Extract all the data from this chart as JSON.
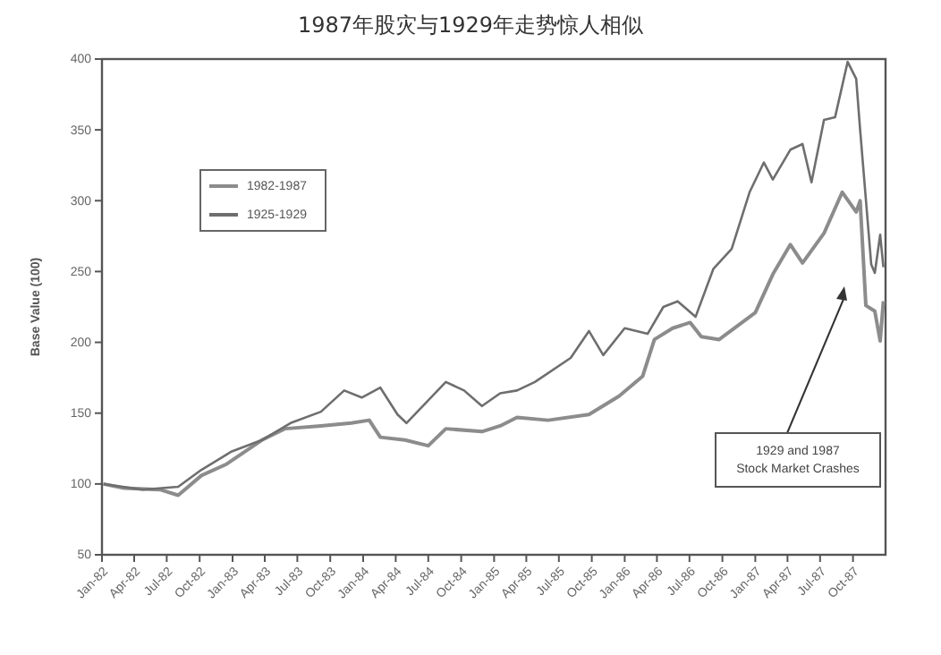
{
  "chart_data": {
    "type": "line",
    "title": "1987年股灾与1929年走势惊人相似",
    "ylabel": "Base Value (100)",
    "xlim": [
      "1982-01-01",
      "1987-12-31"
    ],
    "ylim": [
      50,
      400
    ],
    "yticks": [
      50,
      100,
      150,
      200,
      250,
      300,
      350,
      400
    ],
    "xticks": [
      {
        "value": "1982-01-01",
        "label": "Jan-82"
      },
      {
        "value": "1982-04-01",
        "label": "Apr-82"
      },
      {
        "value": "1982-07-01",
        "label": "Jul-82"
      },
      {
        "value": "1982-10-01",
        "label": "Oct-82"
      },
      {
        "value": "1983-01-01",
        "label": "Jan-83"
      },
      {
        "value": "1983-04-01",
        "label": "Apr-83"
      },
      {
        "value": "1983-07-01",
        "label": "Jul-83"
      },
      {
        "value": "1983-10-01",
        "label": "Oct-83"
      },
      {
        "value": "1984-01-01",
        "label": "Jan-84"
      },
      {
        "value": "1984-04-01",
        "label": "Apr-84"
      },
      {
        "value": "1984-07-01",
        "label": "Jul-84"
      },
      {
        "value": "1984-10-01",
        "label": "Oct-84"
      },
      {
        "value": "1985-01-01",
        "label": "Jan-85"
      },
      {
        "value": "1985-04-01",
        "label": "Apr-85"
      },
      {
        "value": "1985-07-01",
        "label": "Jul-85"
      },
      {
        "value": "1985-10-01",
        "label": "Oct-85"
      },
      {
        "value": "1986-01-01",
        "label": "Jan-86"
      },
      {
        "value": "1986-04-01",
        "label": "Apr-86"
      },
      {
        "value": "1986-07-01",
        "label": "Jul-86"
      },
      {
        "value": "1986-10-01",
        "label": "Oct-86"
      },
      {
        "value": "1987-01-01",
        "label": "Jan-87"
      },
      {
        "value": "1987-04-01",
        "label": "Apr-87"
      },
      {
        "value": "1987-07-01",
        "label": "Jul-87"
      },
      {
        "value": "1987-10-01",
        "label": "Oct-87"
      }
    ],
    "grid": false,
    "legend": "top left",
    "line_style": "solid",
    "marker": "none",
    "series": [
      {
        "name": "1982-1987",
        "color": "#8c8c8c",
        "x": [
          "1982-01-05",
          "1982-03-04",
          "1982-06-12",
          "1982-08-02",
          "1982-10-06",
          "1982-12-15",
          "1983-03-24",
          "1983-05-27",
          "1983-09-05",
          "1983-11-29",
          "1984-01-18",
          "1984-02-18",
          "1984-04-27",
          "1984-07-01",
          "1984-08-19",
          "1984-11-28",
          "1985-01-18",
          "1985-03-06",
          "1985-06-01",
          "1985-09-23",
          "1985-12-16",
          "1986-02-20",
          "1986-03-25",
          "1986-05-15",
          "1986-07-03",
          "1986-08-03",
          "1986-09-22",
          "1987-01-01",
          "1987-02-19",
          "1987-04-09",
          "1987-05-13",
          "1987-07-12",
          "1987-09-01",
          "1987-10-10",
          "1987-10-21",
          "1987-11-06",
          "1987-12-01",
          "1987-12-16",
          "1987-12-25"
        ],
        "values": [
          100,
          97,
          96,
          92,
          106,
          114,
          131,
          139,
          141,
          143,
          145,
          133,
          131,
          127,
          139,
          137,
          141,
          147,
          145,
          149,
          162,
          176,
          202,
          210,
          214,
          204,
          202,
          221,
          248,
          269,
          256,
          277,
          306,
          292,
          300,
          226,
          222,
          201,
          229
        ]
      },
      {
        "name": "1925-1929",
        "color": "#6e6e6e",
        "x": [
          "1982-01-05",
          "1982-04-24",
          "1982-08-02",
          "1982-10-06",
          "1982-12-30",
          "1983-03-24",
          "1983-06-12",
          "1983-09-05",
          "1983-11-09",
          "1983-12-28",
          "1984-02-18",
          "1984-04-06",
          "1984-05-01",
          "1984-07-01",
          "1984-08-19",
          "1984-10-09",
          "1984-11-28",
          "1985-01-18",
          "1985-03-06",
          "1985-04-25",
          "1985-08-03",
          "1985-09-23",
          "1985-11-02",
          "1986-01-01",
          "1986-03-06",
          "1986-04-19",
          "1986-05-29",
          "1986-07-18",
          "1986-09-06",
          "1986-10-27",
          "1986-12-16",
          "1987-01-25",
          "1987-02-19",
          "1987-04-09",
          "1987-05-13",
          "1987-06-07",
          "1987-07-12",
          "1987-08-12",
          "1987-09-16",
          "1987-10-10",
          "1987-10-21",
          "1987-11-06",
          "1987-11-21",
          "1987-12-01",
          "1987-12-16",
          "1987-12-25"
        ],
        "values": [
          100,
          96,
          98,
          110,
          123,
          131,
          143,
          151,
          166,
          161,
          168,
          149,
          143,
          159,
          172,
          166,
          155,
          164,
          166,
          172,
          189,
          208,
          191,
          210,
          206,
          225,
          229,
          218,
          252,
          266,
          306,
          327,
          315,
          336,
          340,
          313,
          357,
          359,
          398,
          386,
          350,
          301,
          255,
          249,
          276,
          253
        ]
      }
    ],
    "annotations": [
      "1929 and 1987\nStock Market Crashes"
    ]
  }
}
